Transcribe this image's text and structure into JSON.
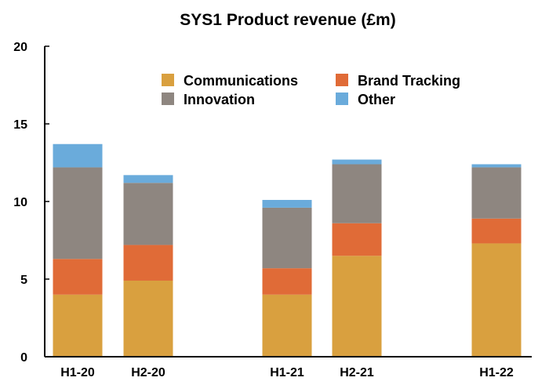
{
  "chart_data": {
    "type": "bar",
    "stacked": true,
    "title": "SYS1 Product revenue (£m)",
    "xlabel": "",
    "ylabel": "",
    "ylim": [
      0,
      20
    ],
    "yticks": [
      0,
      5,
      10,
      15,
      20
    ],
    "grid": false,
    "legend_position": "top-right",
    "categories": [
      "H1-20",
      "H2-20",
      "H1-21",
      "H2-21",
      "H1-22"
    ],
    "series": [
      {
        "name": "Communications",
        "color": "#D9A03F",
        "values": [
          4.0,
          4.9,
          4.0,
          6.5,
          7.3
        ]
      },
      {
        "name": "Brand Tracking",
        "color": "#E06B37",
        "values": [
          2.3,
          2.3,
          1.7,
          2.1,
          1.6
        ]
      },
      {
        "name": "Innovation",
        "color": "#8E8680",
        "values": [
          5.9,
          4.0,
          3.9,
          3.8,
          3.3
        ]
      },
      {
        "name": "Other",
        "color": "#6AABDB",
        "values": [
          1.5,
          0.5,
          0.5,
          0.3,
          0.2
        ]
      }
    ]
  }
}
